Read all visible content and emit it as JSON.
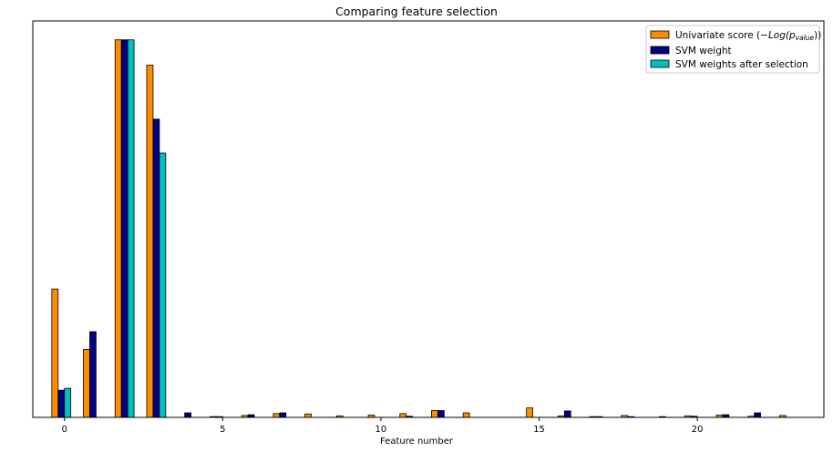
{
  "chart_data": {
    "type": "bar",
    "title": "Comparing feature selection",
    "xlabel": "Feature number",
    "ylabel": "",
    "xlim": [
      -1,
      24
    ],
    "ylim": [
      0,
      1.05
    ],
    "xticks": [
      0,
      5,
      10,
      15,
      20
    ],
    "yticks_visible": false,
    "grid": false,
    "legend_position": "top-right",
    "bar_width": 0.2,
    "series": [
      {
        "name": "Univariate score ($-Log(p_{value})$)",
        "legend_main": "Univariate score (",
        "legend_math": "−Log(p",
        "legend_sub": "value",
        "legend_close": "))",
        "color": "#ff8c00",
        "x": [
          -0.4,
          0.6,
          1.6,
          2.6,
          3.6,
          4.6,
          5.6,
          6.6,
          7.6,
          8.6,
          9.6,
          10.6,
          11.6,
          12.6,
          13.6,
          14.6,
          15.6,
          16.6,
          17.6,
          18.6,
          19.6,
          20.6,
          21.6,
          22.6
        ],
        "values": [
          0.34,
          0.18,
          1.0,
          0.933,
          0.0,
          0.002,
          0.005,
          0.01,
          0.009,
          0.004,
          0.006,
          0.01,
          0.018,
          0.012,
          0.0,
          0.025,
          0.004,
          0.002,
          0.005,
          0.0,
          0.004,
          0.006,
          0.003,
          0.005
        ]
      },
      {
        "name": "SVM weight",
        "color": "#000080",
        "x": [
          -0.2,
          0.8,
          1.8,
          2.8,
          3.8,
          4.8,
          5.8,
          6.8,
          7.8,
          8.8,
          9.8,
          10.8,
          11.8,
          12.8,
          13.8,
          14.8,
          15.8,
          16.8,
          17.8,
          18.8,
          19.8,
          20.8,
          21.8,
          22.8
        ],
        "values": [
          0.072,
          0.227,
          1.0,
          0.79,
          0.012,
          0.002,
          0.007,
          0.012,
          0.0,
          0.0,
          0.0,
          0.003,
          0.018,
          0.0,
          0.0,
          0.0,
          0.017,
          0.002,
          0.002,
          0.002,
          0.003,
          0.007,
          0.012,
          0.0
        ]
      },
      {
        "name": "SVM weights after selection",
        "color": "#00c0c0",
        "x": [
          0.0,
          1.0,
          2.0,
          3.0
        ],
        "values": [
          0.077,
          0.0,
          1.0,
          0.7
        ]
      }
    ]
  }
}
